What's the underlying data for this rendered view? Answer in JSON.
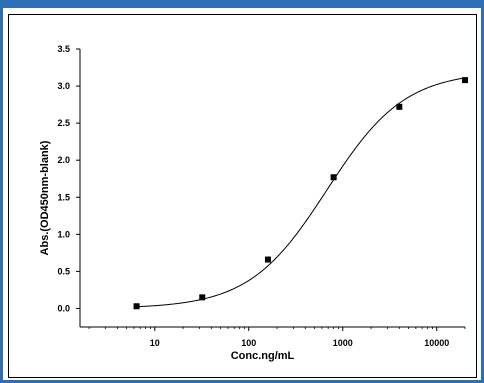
{
  "chart_data": {
    "type": "scatter",
    "title": "",
    "xlabel": "Conc.ng/mL",
    "ylabel": "Abs.(OD450nm-blank)",
    "x_scale": "log",
    "xlim": [
      1.6,
      20000
    ],
    "ylim": [
      -0.25,
      3.5
    ],
    "x_ticks": [
      10,
      100,
      1000,
      10000
    ],
    "x_tick_labels": [
      "10",
      "100",
      "1000",
      "10000"
    ],
    "y_ticks": [
      0.0,
      0.5,
      1.0,
      1.5,
      2.0,
      2.5,
      3.0,
      3.5
    ],
    "y_tick_labels": [
      "0.0",
      "0.5",
      "1.0",
      "1.5",
      "2.0",
      "2.5",
      "3.0",
      "3.5"
    ],
    "grid": false,
    "legend": "none",
    "series": [
      {
        "marker": "square",
        "points": [
          {
            "x": 6.4,
            "y": 0.03
          },
          {
            "x": 32,
            "y": 0.15
          },
          {
            "x": 160,
            "y": 0.66
          },
          {
            "x": 800,
            "y": 1.77
          },
          {
            "x": 4000,
            "y": 2.72
          },
          {
            "x": 20000,
            "y": 3.08
          }
        ]
      }
    ],
    "fit_curve": {
      "type": "4PL",
      "bottom": 0.0,
      "top": 3.2,
      "ec50": 680,
      "hill": 1.05
    },
    "colors": {
      "marker": "#000000",
      "curve": "#000000",
      "frame": "#2f6db5"
    }
  }
}
